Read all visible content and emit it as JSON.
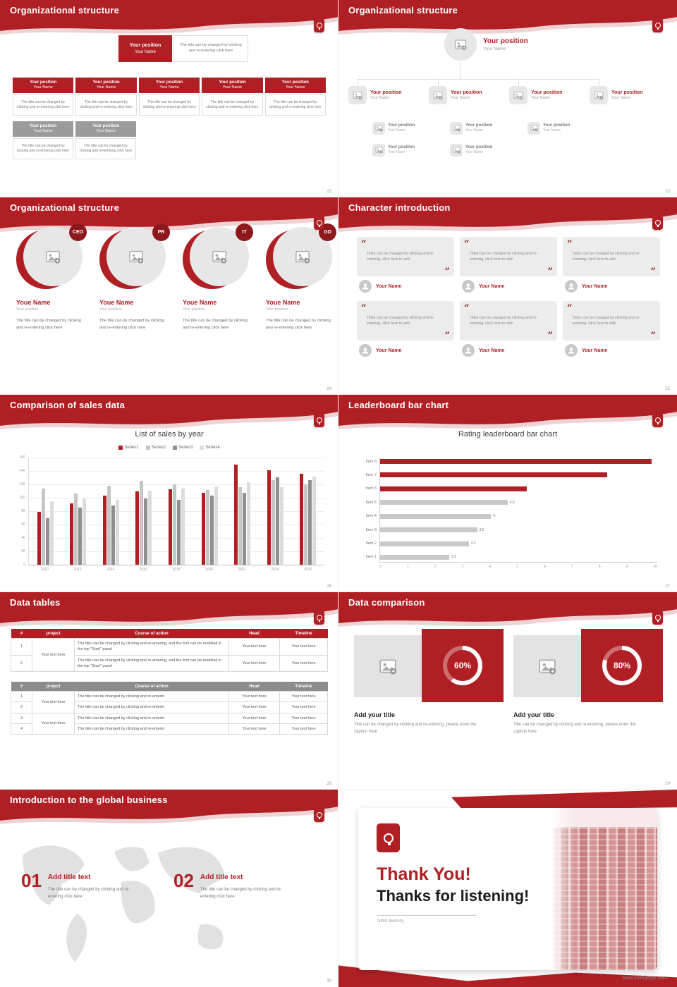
{
  "theme": {
    "red": "#b01f24",
    "dark_red": "#8e191d",
    "gray_box": "#9b9b9b",
    "light_gray": "#e7e7e7"
  },
  "common": {
    "position_label": "Your position",
    "name_label": "Your Name"
  },
  "slide22": {
    "title": "Organizational structure",
    "page": "22",
    "node": {
      "position": "Your position",
      "name": "Your Name"
    },
    "note": "The title can be changed by clicking and re-entering click here"
  },
  "slide23": {
    "title": "Organizational structure",
    "page": "23",
    "node": {
      "position": "Your position",
      "name": "Your Name"
    }
  },
  "slide24": {
    "title": "Organizational structure",
    "page": "24",
    "badges": [
      "CEO",
      "PR",
      "IT",
      "GD"
    ],
    "name": "Youe Name",
    "position": "Your position",
    "note": "The title can be changed by clicking and re-entering click here"
  },
  "slide25": {
    "title": "Character introduction",
    "page": "25",
    "quote": "Titles can be changed by clicking and re-entering, click here to add",
    "name": "Your Name"
  },
  "slide26": {
    "title": "Comparison of sales data",
    "page": "26",
    "chart_data": {
      "type": "bar",
      "title": "List of sales by year",
      "categories": [
        "2010",
        "2012",
        "2014",
        "2016",
        "2018",
        "2020",
        "2022",
        "2024",
        "2026"
      ],
      "series": [
        {
          "name": "Series1",
          "color": "#b01f24",
          "values": [
            80,
            92,
            104,
            110,
            113,
            108,
            150,
            142,
            137
          ]
        },
        {
          "name": "Series2",
          "color": "#c6c6c6",
          "values": [
            114,
            107,
            119,
            126,
            121,
            112,
            117,
            127,
            121
          ]
        },
        {
          "name": "Series3",
          "color": "#8f8f8f",
          "values": [
            70,
            86,
            89,
            100,
            98,
            104,
            108,
            131,
            127
          ]
        },
        {
          "name": "Series4",
          "color": "#dcdcdc",
          "values": [
            95,
            100,
            98,
            111,
            114,
            118,
            124,
            117,
            132
          ]
        }
      ],
      "ylim": [
        0,
        160
      ],
      "ytick_step": 20,
      "grid": true,
      "legend_position": "top"
    }
  },
  "slide27": {
    "title": "Leaderboard bar chart",
    "page": "27",
    "chart_data": {
      "type": "bar",
      "orientation": "horizontal",
      "title": "Rating leaderboard bar chart",
      "categories": [
        "Item 8",
        "Item 7",
        "Item 6",
        "Item 5",
        "Item 4",
        "Item 3",
        "Item 2",
        "Item 1"
      ],
      "values": [
        9.8,
        8.2,
        5.3,
        4.6,
        4,
        3.5,
        3.2,
        2.5
      ],
      "labels": [
        "",
        "",
        "",
        "4.6",
        "4",
        "3.5",
        "3.2",
        "2.5"
      ],
      "colors": [
        "#b01f24",
        "#b01f24",
        "#b01f24",
        "#c9c9c9",
        "#c9c9c9",
        "#c9c9c9",
        "#c9c9c9",
        "#c9c9c9"
      ],
      "xlim": [
        0,
        10
      ],
      "xticks": [
        0,
        1,
        2,
        3,
        4,
        5,
        6,
        7,
        8,
        9,
        10
      ]
    }
  },
  "slide28": {
    "title": "Data tables",
    "page": "28",
    "headers": [
      "#",
      "project",
      "Course of action",
      "Head",
      "Timeline"
    ],
    "t1": {
      "nums": [
        "1",
        "2"
      ],
      "project": "Your text here",
      "course": "The title can be changed by clicking and re-entering, and the font can be modified in the top \"Start\" panel",
      "head": "Your text here",
      "timeline": "Your text here"
    },
    "t2": {
      "nums": [
        "1",
        "2",
        "3",
        "4"
      ],
      "project": "Your text here",
      "course": "The title can be changed by clicking and re-enterin",
      "head": "Your text here",
      "timeline": "Your text here"
    }
  },
  "slide29": {
    "title": "Data comparison",
    "page": "29",
    "cards": [
      {
        "percent": 60,
        "percent_label": "60%",
        "heading": "Add your title",
        "caption": "Title can be changed by clicking and re-entering, please enter the caption here"
      },
      {
        "percent": 80,
        "percent_label": "80%",
        "heading": "Add your title",
        "caption": "Title can be changed by clicking and re-entering, please enter the caption here"
      }
    ]
  },
  "slide30": {
    "title": "Introduction to the global business",
    "page": "30",
    "items": [
      {
        "num": "01",
        "heading": "Add title text",
        "caption": "The title can be changed by clicking and re-entering click here"
      },
      {
        "num": "02",
        "heading": "Add title text",
        "caption": "The title can be changed by clicking and re-entering click here"
      }
    ]
  },
  "slide31": {
    "thank_you": "Thank You!",
    "subtitle": "Thanks for listening!",
    "tagline": "GWA diversity",
    "site": "www.collegeppt.com"
  }
}
